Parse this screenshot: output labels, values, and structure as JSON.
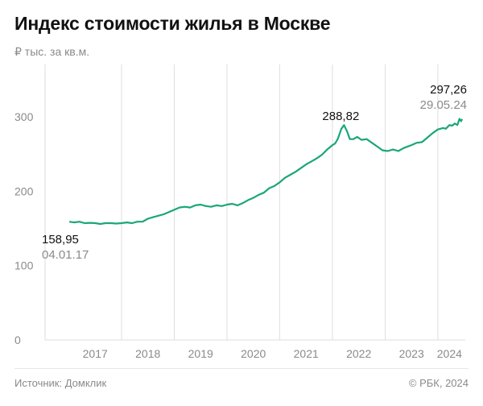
{
  "title": "Индекс стоимости жилья в Москве",
  "unit_label": "₽ тыс. за кв.м.",
  "source": "Источник: Домклик",
  "copyright": "© РБК, 2024",
  "colors": {
    "line": "#1aa67a",
    "grid": "#dedede",
    "text": "#111111",
    "muted": "#8a8a8a"
  },
  "chart_data": {
    "type": "line",
    "title": "Индекс стоимости жилья в Москве",
    "ylabel": "₽ тыс. за кв.м.",
    "ylim": [
      0,
      300
    ],
    "yticks": [
      0,
      100,
      200,
      300
    ],
    "x_ticks": [
      "2017",
      "2018",
      "2019",
      "2020",
      "2021",
      "2022",
      "2023",
      "2024"
    ],
    "grid": "vertical lines at year boundaries, baseline at 0",
    "series": [
      {
        "points": [
          [
            2017.01,
            158.95
          ],
          [
            2017.1,
            158
          ],
          [
            2017.2,
            159
          ],
          [
            2017.3,
            157
          ],
          [
            2017.4,
            157.5
          ],
          [
            2017.5,
            157
          ],
          [
            2017.6,
            156
          ],
          [
            2017.7,
            157
          ],
          [
            2017.8,
            157
          ],
          [
            2017.9,
            156.5
          ],
          [
            2018.0,
            157
          ],
          [
            2018.1,
            158
          ],
          [
            2018.2,
            157
          ],
          [
            2018.3,
            159
          ],
          [
            2018.4,
            159
          ],
          [
            2018.5,
            163
          ],
          [
            2018.6,
            165
          ],
          [
            2018.7,
            167
          ],
          [
            2018.8,
            169
          ],
          [
            2018.9,
            172
          ],
          [
            2019.0,
            175
          ],
          [
            2019.1,
            178
          ],
          [
            2019.2,
            179
          ],
          [
            2019.3,
            178
          ],
          [
            2019.4,
            181
          ],
          [
            2019.5,
            182
          ],
          [
            2019.6,
            180
          ],
          [
            2019.7,
            179
          ],
          [
            2019.8,
            181
          ],
          [
            2019.9,
            180
          ],
          [
            2020.0,
            182
          ],
          [
            2020.1,
            183
          ],
          [
            2020.2,
            181
          ],
          [
            2020.3,
            184
          ],
          [
            2020.4,
            188
          ],
          [
            2020.5,
            191
          ],
          [
            2020.6,
            195
          ],
          [
            2020.7,
            198
          ],
          [
            2020.8,
            204
          ],
          [
            2020.9,
            207
          ],
          [
            2021.0,
            212
          ],
          [
            2021.1,
            218
          ],
          [
            2021.2,
            222
          ],
          [
            2021.3,
            226
          ],
          [
            2021.4,
            231
          ],
          [
            2021.5,
            236
          ],
          [
            2021.6,
            240
          ],
          [
            2021.7,
            244
          ],
          [
            2021.8,
            249
          ],
          [
            2021.9,
            256
          ],
          [
            2022.0,
            262
          ],
          [
            2022.05,
            264
          ],
          [
            2022.1,
            270
          ],
          [
            2022.17,
            284
          ],
          [
            2022.22,
            288.82
          ],
          [
            2022.28,
            280
          ],
          [
            2022.33,
            270
          ],
          [
            2022.4,
            270
          ],
          [
            2022.47,
            273
          ],
          [
            2022.55,
            269
          ],
          [
            2022.65,
            270
          ],
          [
            2022.75,
            265
          ],
          [
            2022.85,
            260
          ],
          [
            2022.95,
            255
          ],
          [
            2023.05,
            254
          ],
          [
            2023.15,
            256
          ],
          [
            2023.25,
            254
          ],
          [
            2023.35,
            258
          ],
          [
            2023.5,
            262
          ],
          [
            2023.6,
            265
          ],
          [
            2023.7,
            266
          ],
          [
            2023.8,
            272
          ],
          [
            2023.9,
            278
          ],
          [
            2024.0,
            283
          ],
          [
            2024.1,
            285
          ],
          [
            2024.15,
            284
          ],
          [
            2024.22,
            289
          ],
          [
            2024.27,
            288
          ],
          [
            2024.32,
            291
          ],
          [
            2024.37,
            289
          ],
          [
            2024.41,
            297.26
          ],
          [
            2024.44,
            294
          ],
          [
            2024.46,
            297
          ]
        ]
      }
    ],
    "annotations": [
      {
        "value": "158,95",
        "date": "04.01.17",
        "x": 2017.01,
        "y": 158.95
      },
      {
        "value": "288,82",
        "x": 2022.22,
        "y": 288.82
      },
      {
        "value": "297,26",
        "date": "29.05.24",
        "x": 2024.41,
        "y": 297.26
      }
    ]
  }
}
